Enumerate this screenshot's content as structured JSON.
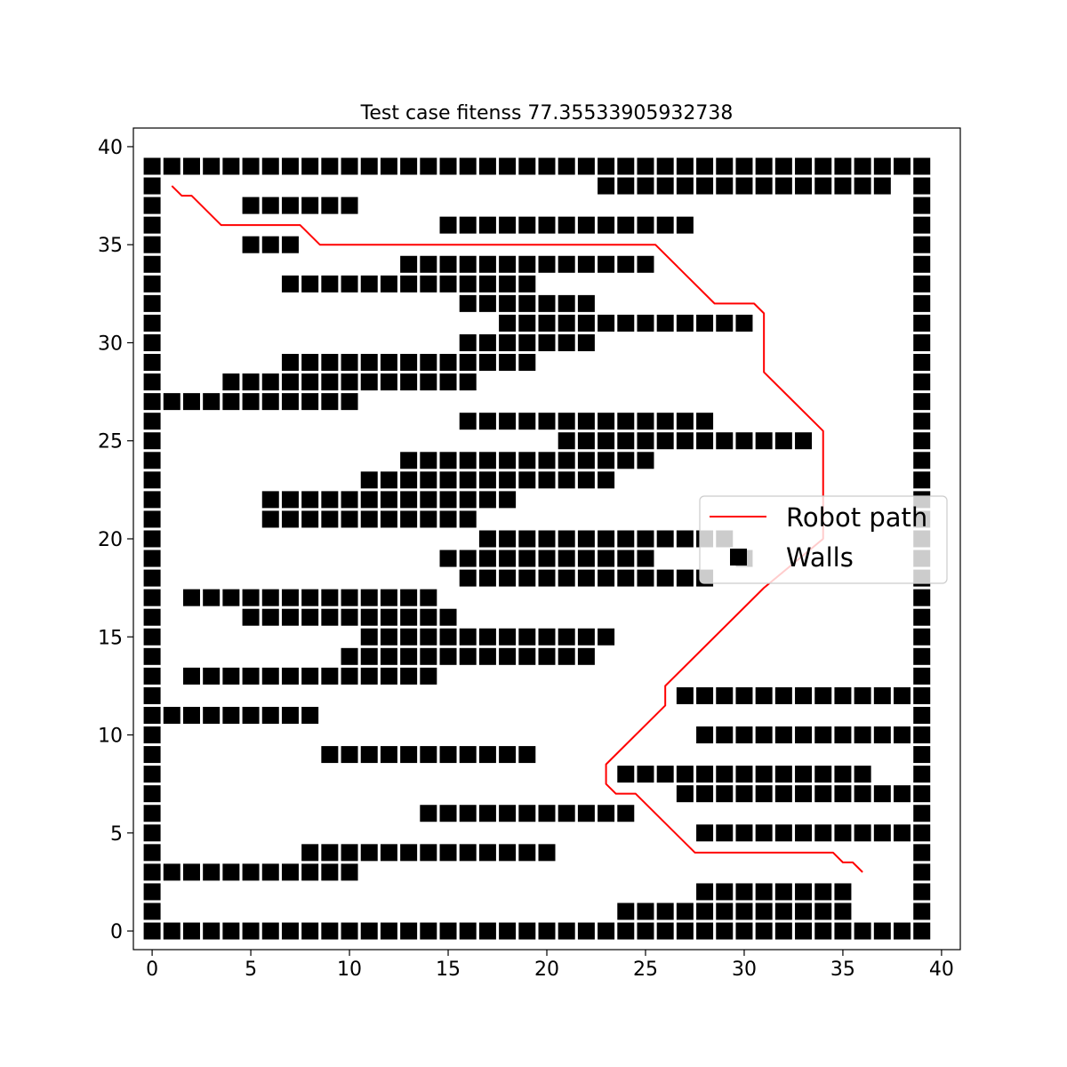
{
  "chart_data": {
    "type": "scatter",
    "title": "Test case fitenss 77.35533905932738",
    "xlim": [
      -0.95,
      40.95
    ],
    "ylim": [
      -0.95,
      40.95
    ],
    "x_ticks": [
      0,
      5,
      10,
      15,
      20,
      25,
      30,
      35,
      40
    ],
    "y_ticks": [
      0,
      5,
      10,
      15,
      20,
      25,
      30,
      35,
      40
    ],
    "x_tick_labels": [
      "0",
      "5",
      "10",
      "15",
      "20",
      "25",
      "30",
      "35",
      "40"
    ],
    "y_tick_labels": [
      "0",
      "5",
      "10",
      "15",
      "20",
      "25",
      "30",
      "35",
      "40"
    ],
    "legend_position": "center-right",
    "grid": false,
    "series": [
      {
        "name": "Robot path",
        "kind": "line",
        "color": "#ff0000",
        "points": [
          [
            1,
            38
          ],
          [
            1.5,
            37.5
          ],
          [
            2,
            37.5
          ],
          [
            3.5,
            36
          ],
          [
            7.5,
            36
          ],
          [
            8.5,
            35
          ],
          [
            25.5,
            35
          ],
          [
            28.5,
            32
          ],
          [
            30.5,
            32
          ],
          [
            31,
            31.5
          ],
          [
            31,
            28.5
          ],
          [
            34,
            25.5
          ],
          [
            34,
            20
          ],
          [
            31,
            17.5
          ],
          [
            26,
            12.5
          ],
          [
            26,
            11.5
          ],
          [
            23,
            8.5
          ],
          [
            23,
            7.5
          ],
          [
            23.5,
            7
          ],
          [
            24.5,
            7
          ],
          [
            27.5,
            4
          ],
          [
            34.5,
            4
          ],
          [
            35,
            3.5
          ],
          [
            35.5,
            3.5
          ],
          [
            36,
            3
          ]
        ]
      },
      {
        "name": "Walls",
        "kind": "marker",
        "color": "#000000",
        "runs": [
          [
            39,
            0,
            39
          ],
          [
            38,
            0,
            0
          ],
          [
            38,
            23,
            37
          ],
          [
            38,
            39,
            39
          ],
          [
            37,
            0,
            0
          ],
          [
            37,
            5,
            10
          ],
          [
            37,
            39,
            39
          ],
          [
            36,
            0,
            0
          ],
          [
            36,
            15,
            27
          ],
          [
            36,
            39,
            39
          ],
          [
            35,
            0,
            0
          ],
          [
            35,
            5,
            7
          ],
          [
            35,
            39,
            39
          ],
          [
            34,
            0,
            0
          ],
          [
            34,
            13,
            25
          ],
          [
            34,
            39,
            39
          ],
          [
            33,
            0,
            0
          ],
          [
            33,
            7,
            19
          ],
          [
            33,
            39,
            39
          ],
          [
            32,
            0,
            0
          ],
          [
            32,
            16,
            22
          ],
          [
            32,
            39,
            39
          ],
          [
            31,
            0,
            0
          ],
          [
            31,
            18,
            30
          ],
          [
            31,
            39,
            39
          ],
          [
            30,
            0,
            0
          ],
          [
            30,
            16,
            22
          ],
          [
            30,
            39,
            39
          ],
          [
            29,
            0,
            0
          ],
          [
            29,
            7,
            19
          ],
          [
            29,
            39,
            39
          ],
          [
            28,
            0,
            0
          ],
          [
            28,
            4,
            16
          ],
          [
            28,
            39,
            39
          ],
          [
            27,
            0,
            10
          ],
          [
            27,
            39,
            39
          ],
          [
            26,
            0,
            0
          ],
          [
            26,
            16,
            28
          ],
          [
            26,
            39,
            39
          ],
          [
            25,
            0,
            0
          ],
          [
            25,
            21,
            33
          ],
          [
            25,
            39,
            39
          ],
          [
            24,
            0,
            0
          ],
          [
            24,
            13,
            25
          ],
          [
            24,
            39,
            39
          ],
          [
            23,
            0,
            0
          ],
          [
            23,
            11,
            23
          ],
          [
            23,
            39,
            39
          ],
          [
            22,
            0,
            0
          ],
          [
            22,
            6,
            18
          ],
          [
            22,
            39,
            39
          ],
          [
            21,
            0,
            0
          ],
          [
            21,
            6,
            16
          ],
          [
            21,
            39,
            39
          ],
          [
            20,
            0,
            0
          ],
          [
            20,
            17,
            29
          ],
          [
            20,
            39,
            39
          ],
          [
            19,
            0,
            0
          ],
          [
            19,
            15,
            25
          ],
          [
            19,
            30,
            30
          ],
          [
            19,
            39,
            39
          ],
          [
            18,
            0,
            0
          ],
          [
            18,
            16,
            28
          ],
          [
            18,
            39,
            39
          ],
          [
            17,
            0,
            0
          ],
          [
            17,
            2,
            14
          ],
          [
            17,
            39,
            39
          ],
          [
            16,
            0,
            0
          ],
          [
            16,
            5,
            15
          ],
          [
            16,
            39,
            39
          ],
          [
            15,
            0,
            0
          ],
          [
            15,
            11,
            23
          ],
          [
            15,
            39,
            39
          ],
          [
            14,
            0,
            0
          ],
          [
            14,
            10,
            22
          ],
          [
            14,
            39,
            39
          ],
          [
            13,
            0,
            0
          ],
          [
            13,
            2,
            14
          ],
          [
            13,
            39,
            39
          ],
          [
            12,
            0,
            0
          ],
          [
            12,
            27,
            39
          ],
          [
            11,
            0,
            8
          ],
          [
            11,
            39,
            39
          ],
          [
            10,
            0,
            0
          ],
          [
            10,
            28,
            39
          ],
          [
            9,
            0,
            0
          ],
          [
            9,
            9,
            19
          ],
          [
            9,
            39,
            39
          ],
          [
            8,
            0,
            0
          ],
          [
            8,
            24,
            36
          ],
          [
            8,
            39,
            39
          ],
          [
            7,
            0,
            0
          ],
          [
            7,
            27,
            39
          ],
          [
            6,
            0,
            0
          ],
          [
            6,
            14,
            24
          ],
          [
            6,
            39,
            39
          ],
          [
            5,
            0,
            0
          ],
          [
            5,
            28,
            39
          ],
          [
            4,
            0,
            0
          ],
          [
            4,
            8,
            20
          ],
          [
            4,
            39,
            39
          ],
          [
            3,
            0,
            10
          ],
          [
            3,
            39,
            39
          ],
          [
            2,
            0,
            0
          ],
          [
            2,
            28,
            35
          ],
          [
            2,
            39,
            39
          ],
          [
            1,
            0,
            0
          ],
          [
            1,
            24,
            35
          ],
          [
            1,
            39,
            39
          ],
          [
            0,
            0,
            39
          ]
        ]
      }
    ]
  }
}
